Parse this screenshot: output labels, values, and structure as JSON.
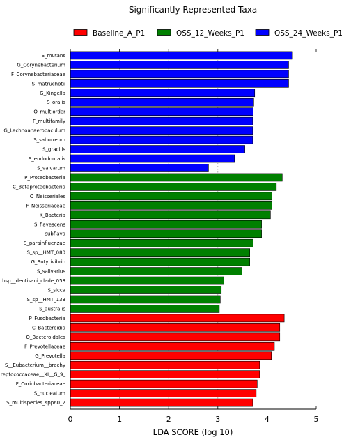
{
  "chart_data": {
    "type": "bar",
    "orientation": "horizontal",
    "title": "Significantly Represented Taxa",
    "xlabel": "LDA SCORE (log 10)",
    "ylabel": "",
    "xlim": [
      0,
      5
    ],
    "xticks": [
      "0",
      "1",
      "2",
      "3",
      "4",
      "5"
    ],
    "grid": "vertical dotted",
    "legend_position": "top",
    "series": [
      {
        "name": "Baseline_A_P1",
        "color": "#ff0000",
        "categories": [
          "P_Fusobacteria",
          "C_Bacteroidia",
          "O_Bacteroidales",
          "F_Prevotellaceae",
          "G_Prevotella",
          "S__Eubacterium__brachy",
          "reptococcaceae__XI__G_9_",
          "F_Coriobacteriaceae",
          "S_nucleatum",
          "S_multispecies_spp60_2"
        ],
        "values": [
          4.35,
          4.26,
          4.26,
          4.15,
          4.09,
          3.85,
          3.85,
          3.8,
          3.78,
          3.71
        ]
      },
      {
        "name": "OSS_12_Weeks_P1",
        "color": "#008000",
        "categories": [
          "P_Proteobacteria",
          "C_Betaproteobacteria",
          "O_Neisseriales",
          "F_Neisseriaceae",
          "K_Bacteria",
          "S_flavescens",
          "subflava",
          "S_parainfluenzae",
          "S_sp__HMT_080",
          "G_Butyrivibrio",
          "S_salivarius",
          "bsp__dentisani_clade_058",
          "S_sicca",
          "S_sp__HMT_133",
          "S_australis"
        ],
        "values": [
          4.31,
          4.19,
          4.1,
          4.1,
          4.07,
          3.89,
          3.89,
          3.72,
          3.65,
          3.65,
          3.49,
          3.12,
          3.07,
          3.05,
          3.03
        ]
      },
      {
        "name": "OSS_24_Weeks_P1",
        "color": "#0000ff",
        "categories": [
          "S_mutans",
          "G_Corynebacterium",
          "F_Corynebacteriaceae",
          "S_matruchotii",
          "G_Kingella",
          "S_oralis",
          "O_multiorder",
          "F_multifamily",
          "G_Lachnoanaerobaculum",
          "S_saburreum",
          "S_gracilis",
          "S_endodontalis",
          "S_valvarum"
        ],
        "values": [
          4.52,
          4.44,
          4.44,
          4.44,
          3.75,
          3.73,
          3.72,
          3.71,
          3.71,
          3.71,
          3.55,
          3.34,
          2.81
        ]
      }
    ],
    "rows": [
      {
        "label": "S_mutans",
        "value": 4.52,
        "series": 2
      },
      {
        "label": "G_Corynebacterium",
        "value": 4.44,
        "series": 2
      },
      {
        "label": "F_Corynebacteriaceae",
        "value": 4.44,
        "series": 2
      },
      {
        "label": "S_matruchotii",
        "value": 4.44,
        "series": 2
      },
      {
        "label": "G_Kingella",
        "value": 3.75,
        "series": 2
      },
      {
        "label": "S_oralis",
        "value": 3.73,
        "series": 2
      },
      {
        "label": "O_multiorder",
        "value": 3.72,
        "series": 2
      },
      {
        "label": "F_multifamily",
        "value": 3.71,
        "series": 2
      },
      {
        "label": "G_Lachnoanaerobaculum",
        "value": 3.71,
        "series": 2
      },
      {
        "label": "S_saburreum",
        "value": 3.71,
        "series": 2
      },
      {
        "label": "S_gracilis",
        "value": 3.55,
        "series": 2
      },
      {
        "label": "S_endodontalis",
        "value": 3.34,
        "series": 2
      },
      {
        "label": "S_valvarum",
        "value": 2.81,
        "series": 2
      },
      {
        "label": "P_Proteobacteria",
        "value": 4.31,
        "series": 1
      },
      {
        "label": "C_Betaproteobacteria",
        "value": 4.19,
        "series": 1
      },
      {
        "label": "O_Neisseriales",
        "value": 4.1,
        "series": 1
      },
      {
        "label": "F_Neisseriaceae",
        "value": 4.1,
        "series": 1
      },
      {
        "label": "K_Bacteria",
        "value": 4.07,
        "series": 1
      },
      {
        "label": "S_flavescens",
        "value": 3.89,
        "series": 1
      },
      {
        "label": "subflava",
        "value": 3.89,
        "series": 1
      },
      {
        "label": "S_parainfluenzae",
        "value": 3.72,
        "series": 1
      },
      {
        "label": "S_sp__HMT_080",
        "value": 3.65,
        "series": 1
      },
      {
        "label": "G_Butyrivibrio",
        "value": 3.65,
        "series": 1
      },
      {
        "label": "S_salivarius",
        "value": 3.49,
        "series": 1
      },
      {
        "label": "bsp__dentisani_clade_058",
        "value": 3.12,
        "series": 1
      },
      {
        "label": "S_sicca",
        "value": 3.07,
        "series": 1
      },
      {
        "label": "S_sp__HMT_133",
        "value": 3.05,
        "series": 1
      },
      {
        "label": "S_australis",
        "value": 3.03,
        "series": 1
      },
      {
        "label": "P_Fusobacteria",
        "value": 4.35,
        "series": 0
      },
      {
        "label": "C_Bacteroidia",
        "value": 4.26,
        "series": 0
      },
      {
        "label": "O_Bacteroidales",
        "value": 4.26,
        "series": 0
      },
      {
        "label": "F_Prevotellaceae",
        "value": 4.15,
        "series": 0
      },
      {
        "label": "G_Prevotella",
        "value": 4.09,
        "series": 0
      },
      {
        "label": "S__Eubacterium__brachy",
        "value": 3.85,
        "series": 0
      },
      {
        "label": "reptococcaceae__XI__G_9_",
        "value": 3.85,
        "series": 0
      },
      {
        "label": "F_Coriobacteriaceae",
        "value": 3.8,
        "series": 0
      },
      {
        "label": "S_nucleatum",
        "value": 3.78,
        "series": 0
      },
      {
        "label": "S_multispecies_spp60_2",
        "value": 3.71,
        "series": 0
      }
    ]
  }
}
